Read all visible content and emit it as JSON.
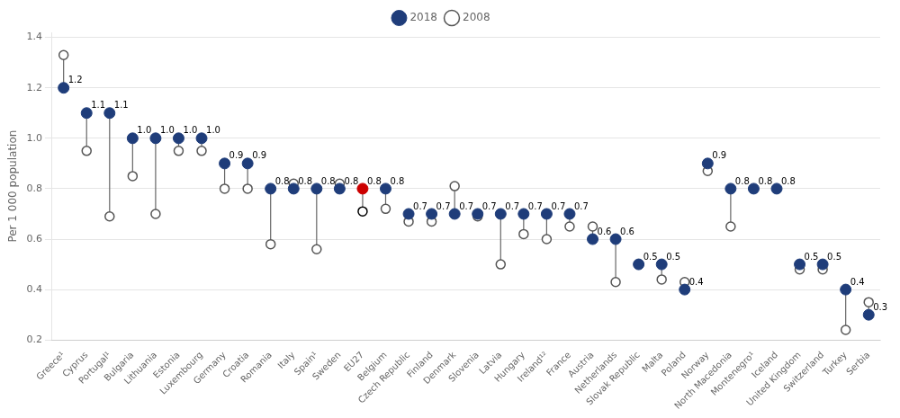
{
  "chart_data": {
    "type": "dumbbell",
    "categories": [
      "Greece¹",
      "Cyprus",
      "Portugal¹",
      "Bulgaria",
      "Lithuania",
      "Estonia",
      "Luxembourg",
      "Germany",
      "Croatia",
      "Romania",
      "Italy",
      "Spain¹",
      "Sweden",
      "EU27",
      "Belgium",
      "Czech Republic",
      "Finland",
      "Denmark",
      "Slovenia",
      "Latvia",
      "Hungary",
      "Ireland¹²",
      "France",
      "Austria",
      "Netherlands",
      "Slovak Republic",
      "Malta",
      "Poland",
      "Norway",
      "North Macedonia",
      "Montenegro¹",
      "Iceland",
      "United Kingdom",
      "Switzerland",
      "Turkey",
      "Serbia"
    ],
    "series": [
      {
        "name": "2008",
        "marker": "open_circle",
        "colors": [
          "#555555",
          "#555555",
          "#555555",
          "#555555",
          "#555555",
          "#555555",
          "#555555",
          "#555555",
          "#555555",
          "#555555",
          "#555555",
          "#555555",
          "#555555",
          "#000000",
          "#555555",
          "#555555",
          "#555555",
          "#555555",
          "#555555",
          "#555555",
          "#555555",
          "#555555",
          "#555555",
          "#555555",
          "#555555",
          "#555555",
          "#555555",
          "#555555",
          "#555555",
          "#555555",
          "#555555",
          "#555555",
          "#555555",
          "#555555",
          "#555555",
          "#555555"
        ],
        "values": [
          1.33,
          0.95,
          0.69,
          0.85,
          0.7,
          0.95,
          0.95,
          0.8,
          0.8,
          0.58,
          0.82,
          0.56,
          0.82,
          0.71,
          0.72,
          0.67,
          0.67,
          0.81,
          0.69,
          0.5,
          0.62,
          0.6,
          0.65,
          0.65,
          0.43,
          0.5,
          0.44,
          0.43,
          0.87,
          0.65,
          null,
          null,
          0.48,
          0.48,
          0.24,
          0.35
        ]
      },
      {
        "name": "2018",
        "marker": "circle",
        "data_labels": true,
        "colors": [
          "#1f3d7a",
          "#1f3d7a",
          "#1f3d7a",
          "#1f3d7a",
          "#1f3d7a",
          "#1f3d7a",
          "#1f3d7a",
          "#1f3d7a",
          "#1f3d7a",
          "#1f3d7a",
          "#1f3d7a",
          "#1f3d7a",
          "#1f3d7a",
          "#cc0000",
          "#1f3d7a",
          "#1f3d7a",
          "#1f3d7a",
          "#1f3d7a",
          "#1f3d7a",
          "#1f3d7a",
          "#1f3d7a",
          "#1f3d7a",
          "#1f3d7a",
          "#1f3d7a",
          "#1f3d7a",
          "#1f3d7a",
          "#1f3d7a",
          "#1f3d7a",
          "#1f3d7a",
          "#1f3d7a",
          "#1f3d7a",
          "#1f3d7a",
          "#1f3d7a",
          "#1f3d7a",
          "#1f3d7a",
          "#1f3d7a"
        ],
        "values": [
          1.2,
          1.1,
          1.1,
          1.0,
          1.0,
          1.0,
          1.0,
          0.9,
          0.9,
          0.8,
          0.8,
          0.8,
          0.8,
          0.8,
          0.8,
          0.7,
          0.7,
          0.7,
          0.7,
          0.7,
          0.7,
          0.7,
          0.7,
          0.6,
          0.6,
          0.5,
          0.5,
          0.4,
          0.9,
          0.8,
          0.8,
          0.8,
          0.5,
          0.5,
          0.4,
          0.3
        ],
        "value_labels": [
          "1.2",
          "1.1",
          "1.1",
          "1.0",
          "1.0",
          "1.0",
          "1.0",
          "0.9",
          "0.9",
          "0.8",
          "0.8",
          "0.8",
          "0.8",
          "0.8",
          "0.8",
          "0.7",
          "0.7",
          "0.7",
          "0.7",
          "0.7",
          "0.7",
          "0.7",
          "0.7",
          "0.6",
          "0.6",
          "0.5",
          "0.5",
          "0.4",
          "0.9",
          "0.8",
          "0.8",
          "0.8",
          "0.5",
          "0.5",
          "0.4",
          "0.3"
        ]
      }
    ],
    "y_label": "Per 1 000 population",
    "ylim": [
      0.2,
      1.42
    ],
    "yticks": [
      0.2,
      0.4,
      0.6,
      {
        "value": 1,
        "label": "1.0"
      },
      0.8,
      1.2,
      1.4
    ],
    "grid": true,
    "legend": "top"
  }
}
